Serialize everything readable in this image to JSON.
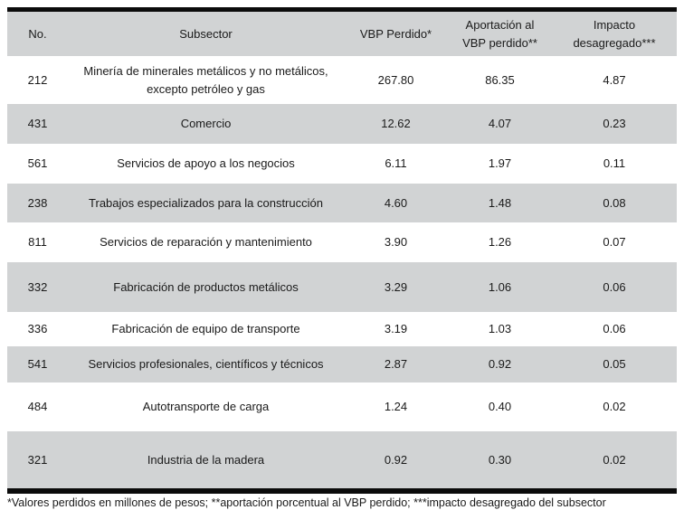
{
  "table": {
    "columns": [
      {
        "label": "No."
      },
      {
        "label": "Subsector"
      },
      {
        "label": "VBP Perdido*"
      },
      {
        "label": "Aportación al\nVBP perdido**"
      },
      {
        "label": "Impacto\ndesagregado***"
      }
    ],
    "rows": [
      {
        "no": "212",
        "subsector": "Minería de minerales metálicos y no metálicos,\nexcepto petróleo y gas",
        "vbp_perdido": "267.80",
        "aportacion": "86.35",
        "impacto": "4.87"
      },
      {
        "no": "431",
        "subsector": "Comercio",
        "vbp_perdido": "12.62",
        "aportacion": "4.07",
        "impacto": "0.23"
      },
      {
        "no": "561",
        "subsector": "Servicios de apoyo a los negocios",
        "vbp_perdido": "6.11",
        "aportacion": "1.97",
        "impacto": "0.11"
      },
      {
        "no": "238",
        "subsector": "Trabajos especializados para la construcción",
        "vbp_perdido": "4.60",
        "aportacion": "1.48",
        "impacto": "0.08"
      },
      {
        "no": "811",
        "subsector": "Servicios de reparación y mantenimiento",
        "vbp_perdido": "3.90",
        "aportacion": "1.26",
        "impacto": "0.07"
      },
      {
        "no": "332",
        "subsector": "Fabricación de productos metálicos",
        "vbp_perdido": "3.29",
        "aportacion": "1.06",
        "impacto": "0.06"
      },
      {
        "no": "336",
        "subsector": "Fabricación de equipo de transporte",
        "vbp_perdido": "3.19",
        "aportacion": "1.03",
        "impacto": "0.06"
      },
      {
        "no": "541",
        "subsector": "Servicios profesionales, científicos y técnicos",
        "vbp_perdido": "2.87",
        "aportacion": "0.92",
        "impacto": "0.05"
      },
      {
        "no": "484",
        "subsector": "Autotransporte de carga",
        "vbp_perdido": "1.24",
        "aportacion": "0.40",
        "impacto": "0.02"
      },
      {
        "no": "321",
        "subsector": "Industria de la madera",
        "vbp_perdido": "0.92",
        "aportacion": "0.30",
        "impacto": "0.02"
      }
    ]
  },
  "footnote": {
    "text": "*Valores perdidos en millones de pesos; **aportación porcentual al VBP perdido; ***impacto desagregado del subsector"
  },
  "colors": {
    "row_stripe": "#d1d3d4",
    "rule": "#0b0b0b",
    "text": "#1a1a1a"
  }
}
